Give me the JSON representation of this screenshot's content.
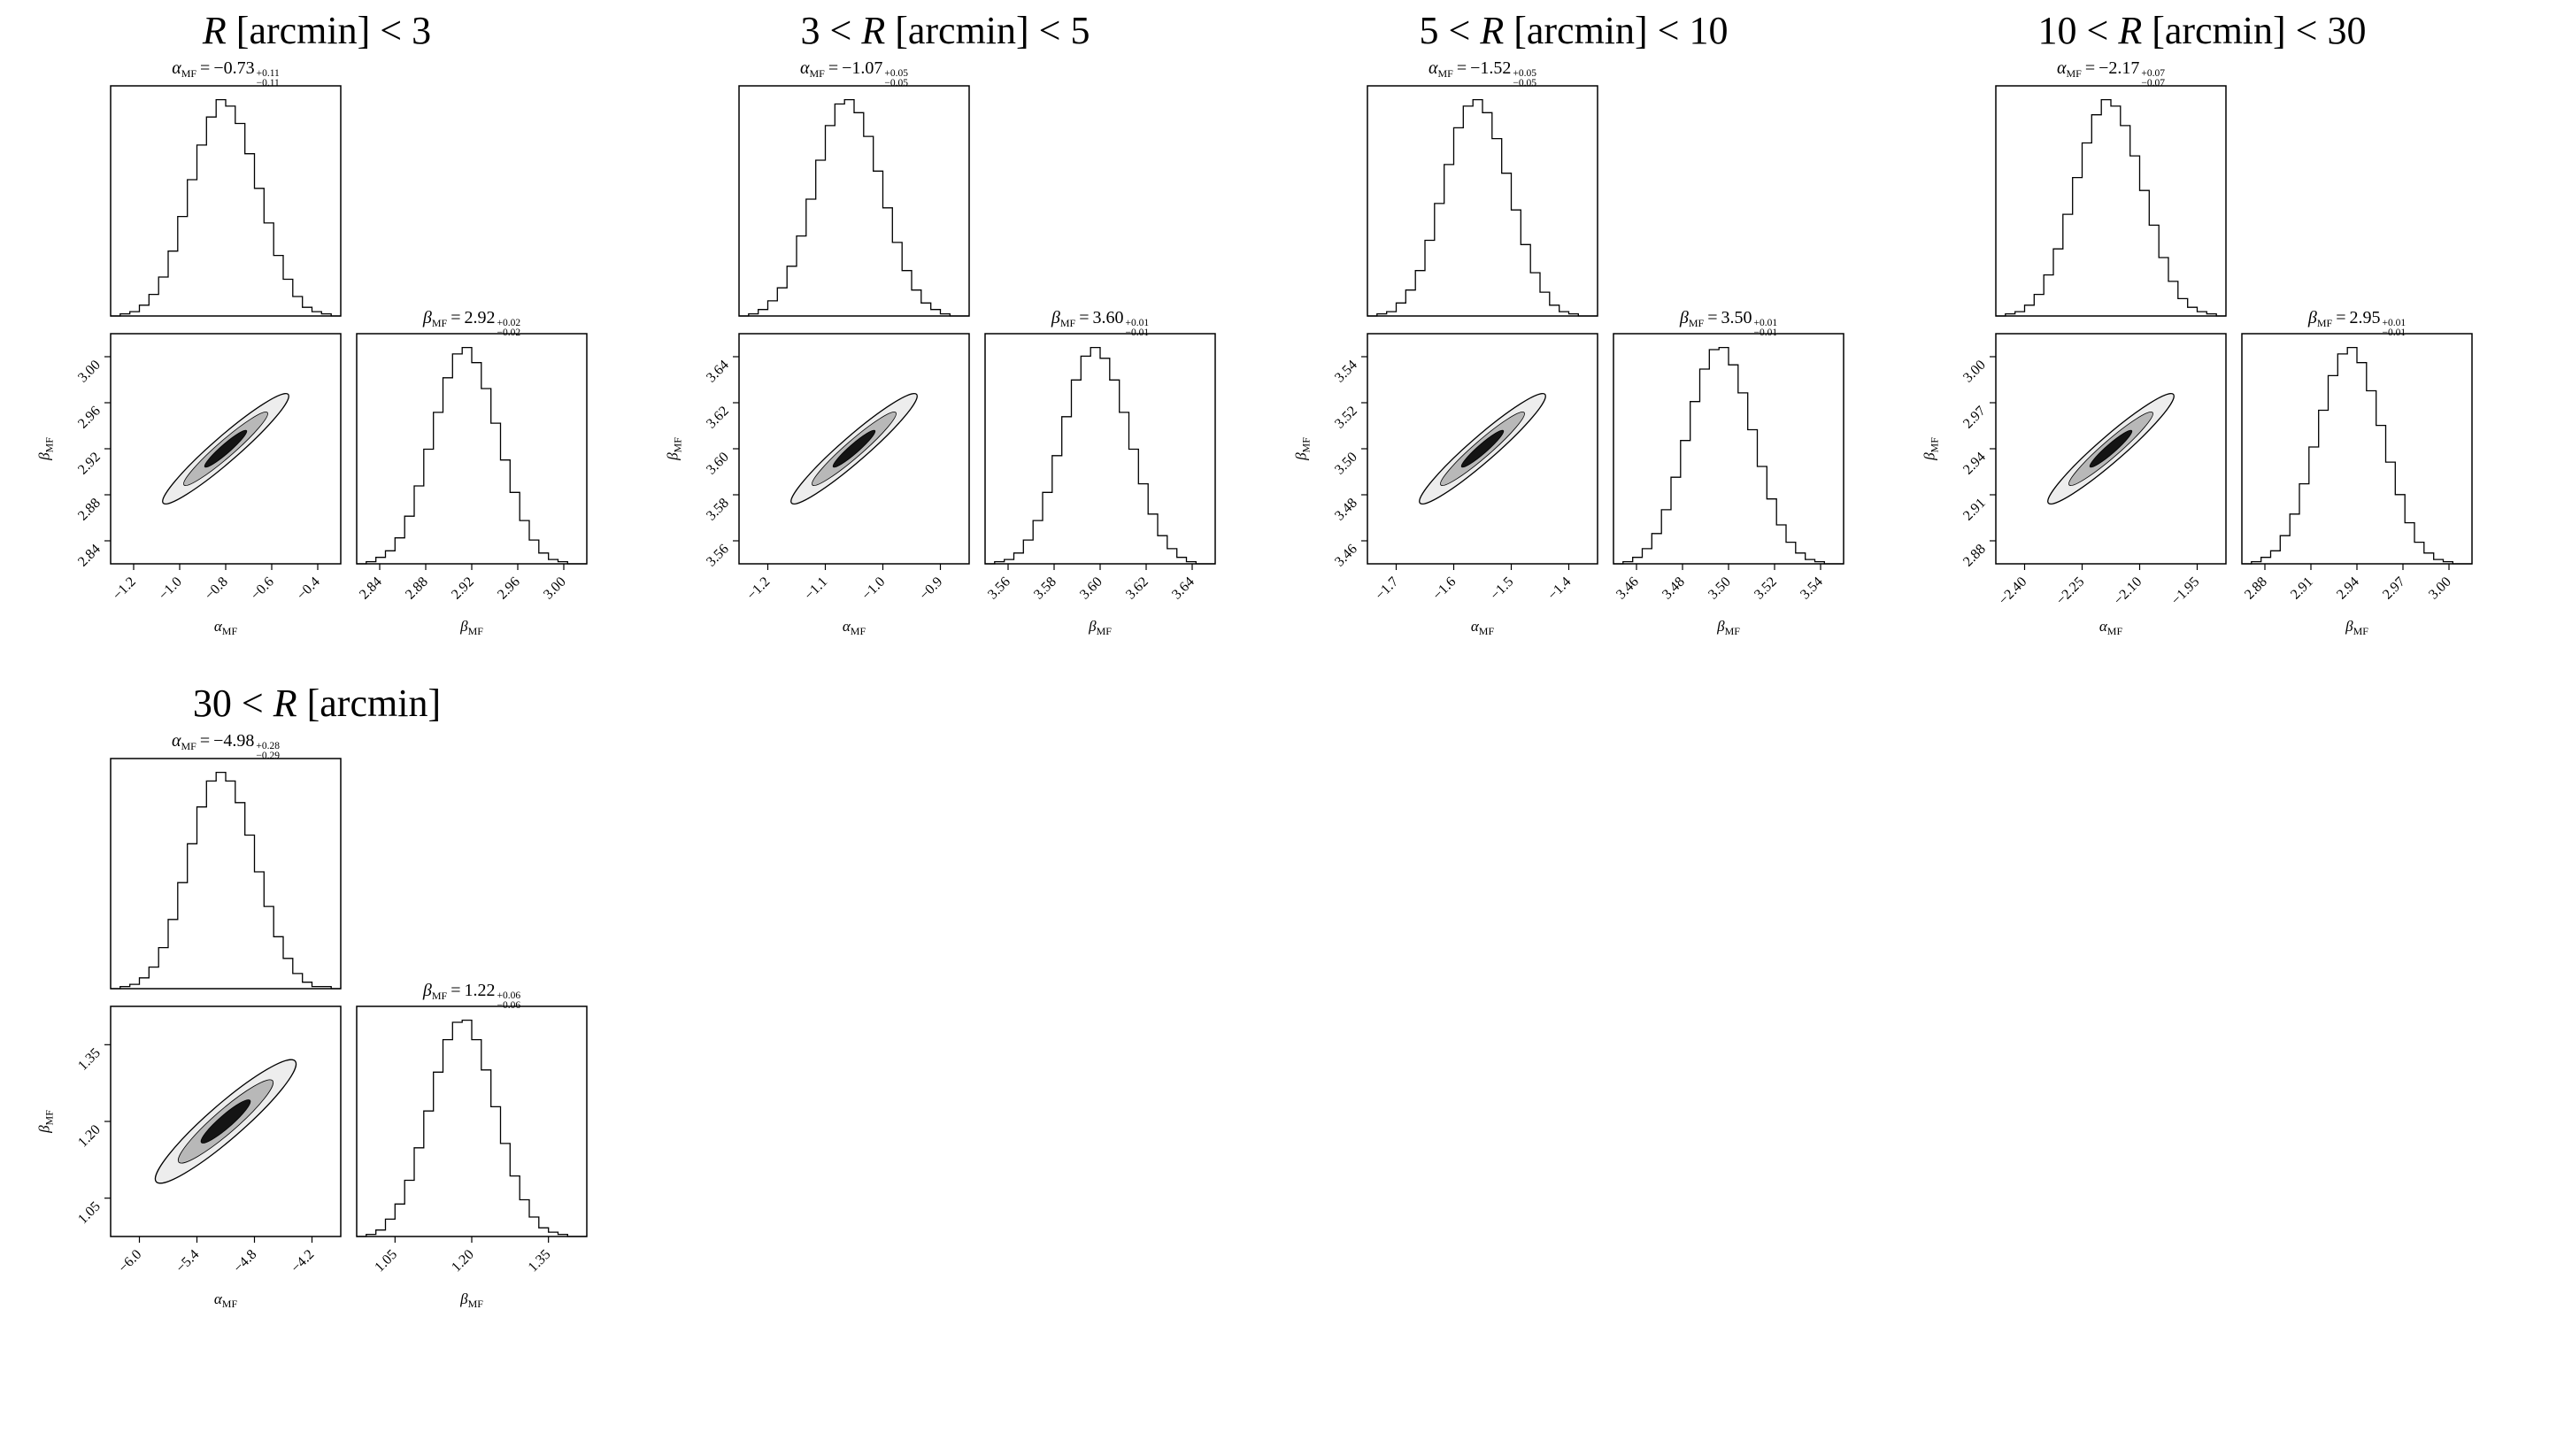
{
  "labels": {
    "r_symbol": "R",
    "alpha_symbol": "α",
    "beta_symbol": "β",
    "mf_sub": "MF",
    "equals": "="
  },
  "colors": {
    "line": "#000000",
    "contour_light": "#ededed",
    "contour_mid": "#b8b8b8",
    "contour_dark": "#141414",
    "background": "#ffffff"
  },
  "chart_data": [
    {
      "type": "corner",
      "title": "R [arcmin] < 3",
      "title_prefix": "",
      "title_suffix": " [arcmin] < 3",
      "alpha": {
        "value": "−0.73",
        "plus": "+0.11",
        "minus": "−0.11"
      },
      "beta": {
        "value": "2.92",
        "plus": "+0.02",
        "minus": "−0.02"
      },
      "xlabel_left": "α_MF",
      "xlabel_right": "β_MF",
      "ylabel": "β_MF",
      "alpha_ticks": [
        "−1.2",
        "−1.0",
        "−0.8",
        "−0.6",
        "−0.4"
      ],
      "beta_ticks": [
        "2.84",
        "2.88",
        "2.92",
        "2.96",
        "3.00"
      ],
      "alpha_hist": [
        0,
        0.01,
        0.02,
        0.05,
        0.1,
        0.18,
        0.3,
        0.46,
        0.63,
        0.79,
        0.92,
        1,
        0.97,
        0.89,
        0.75,
        0.59,
        0.43,
        0.28,
        0.17,
        0.09,
        0.04,
        0.02,
        0.01,
        0
      ],
      "beta_hist": [
        0,
        0.01,
        0.03,
        0.06,
        0.12,
        0.22,
        0.36,
        0.53,
        0.7,
        0.86,
        0.97,
        1,
        0.93,
        0.81,
        0.65,
        0.48,
        0.33,
        0.2,
        0.11,
        0.05,
        0.02,
        0.01,
        0,
        0
      ],
      "contour": {
        "angle": -41,
        "levels": [
          [
            0.36,
            0.055
          ],
          [
            0.24,
            0.036
          ],
          [
            0.12,
            0.02
          ]
        ]
      }
    },
    {
      "type": "corner",
      "title": "3 < R [arcmin] < 5",
      "title_prefix": "3 < ",
      "title_suffix": " [arcmin] < 5",
      "alpha": {
        "value": "−1.07",
        "plus": "+0.05",
        "minus": "−0.05"
      },
      "beta": {
        "value": "3.60",
        "plus": "+0.01",
        "minus": "−0.01"
      },
      "xlabel_left": "α_MF",
      "xlabel_right": "β_MF",
      "ylabel": "β_MF",
      "alpha_ticks": [
        "−1.2",
        "−1.1",
        "−1.0",
        "−0.9"
      ],
      "beta_ticks": [
        "3.56",
        "3.58",
        "3.60",
        "3.62",
        "3.64"
      ],
      "alpha_hist": [
        0,
        0.01,
        0.03,
        0.07,
        0.13,
        0.23,
        0.37,
        0.54,
        0.72,
        0.88,
        0.98,
        1,
        0.94,
        0.83,
        0.67,
        0.5,
        0.34,
        0.21,
        0.12,
        0.06,
        0.03,
        0.01,
        0,
        0
      ],
      "beta_hist": [
        0,
        0.01,
        0.02,
        0.05,
        0.11,
        0.2,
        0.33,
        0.5,
        0.68,
        0.85,
        0.96,
        1,
        0.95,
        0.85,
        0.7,
        0.53,
        0.37,
        0.23,
        0.13,
        0.07,
        0.03,
        0.01,
        0,
        0
      ],
      "contour": {
        "angle": -41,
        "levels": [
          [
            0.36,
            0.055
          ],
          [
            0.24,
            0.036
          ],
          [
            0.12,
            0.02
          ]
        ]
      }
    },
    {
      "type": "corner",
      "title": "5 < R [arcmin] < 10",
      "title_prefix": "5 < ",
      "title_suffix": " [arcmin] < 10",
      "alpha": {
        "value": "−1.52",
        "plus": "+0.05",
        "minus": "−0.05"
      },
      "beta": {
        "value": "3.50",
        "plus": "+0.01",
        "minus": "−0.01"
      },
      "xlabel_left": "α_MF",
      "xlabel_right": "β_MF",
      "ylabel": "β_MF",
      "alpha_ticks": [
        "−1.7",
        "−1.6",
        "−1.5",
        "−1.4"
      ],
      "beta_ticks": [
        "3.46",
        "3.48",
        "3.50",
        "3.52",
        "3.54"
      ],
      "alpha_hist": [
        0,
        0.01,
        0.02,
        0.06,
        0.12,
        0.21,
        0.35,
        0.52,
        0.7,
        0.87,
        0.97,
        1,
        0.94,
        0.82,
        0.66,
        0.49,
        0.33,
        0.2,
        0.11,
        0.05,
        0.02,
        0.01,
        0,
        0
      ],
      "beta_hist": [
        0,
        0.01,
        0.03,
        0.07,
        0.14,
        0.25,
        0.4,
        0.57,
        0.75,
        0.9,
        0.99,
        1,
        0.92,
        0.79,
        0.62,
        0.45,
        0.3,
        0.18,
        0.1,
        0.05,
        0.02,
        0.01,
        0,
        0
      ],
      "contour": {
        "angle": -41,
        "levels": [
          [
            0.36,
            0.055
          ],
          [
            0.24,
            0.036
          ],
          [
            0.12,
            0.02
          ]
        ]
      }
    },
    {
      "type": "corner",
      "title": "10 < R [arcmin] < 30",
      "title_prefix": "10 < ",
      "title_suffix": " [arcmin] < 30",
      "alpha": {
        "value": "−2.17",
        "plus": "+0.07",
        "minus": "−0.07"
      },
      "beta": {
        "value": "2.95",
        "plus": "+0.01",
        "minus": "−0.01"
      },
      "xlabel_left": "α_MF",
      "xlabel_right": "β_MF",
      "ylabel": "β_MF",
      "alpha_ticks": [
        "−2.40",
        "−2.25",
        "−2.10",
        "−1.95"
      ],
      "beta_ticks": [
        "2.88",
        "2.91",
        "2.94",
        "2.97",
        "3.00"
      ],
      "alpha_hist": [
        0,
        0.01,
        0.02,
        0.05,
        0.1,
        0.19,
        0.31,
        0.47,
        0.64,
        0.8,
        0.93,
        1,
        0.97,
        0.88,
        0.74,
        0.58,
        0.42,
        0.27,
        0.16,
        0.08,
        0.04,
        0.02,
        0.01,
        0
      ],
      "beta_hist": [
        0,
        0.01,
        0.03,
        0.06,
        0.13,
        0.23,
        0.37,
        0.54,
        0.71,
        0.87,
        0.97,
        1,
        0.93,
        0.8,
        0.64,
        0.47,
        0.32,
        0.19,
        0.1,
        0.05,
        0.02,
        0.01,
        0,
        0
      ],
      "contour": {
        "angle": -41,
        "levels": [
          [
            0.36,
            0.055
          ],
          [
            0.24,
            0.036
          ],
          [
            0.12,
            0.02
          ]
        ]
      }
    },
    {
      "type": "corner",
      "title": "30 < R [arcmin]",
      "title_prefix": "30 < ",
      "title_suffix": " [arcmin]",
      "alpha": {
        "value": "−4.98",
        "plus": "+0.28",
        "minus": "−0.29"
      },
      "beta": {
        "value": "1.22",
        "plus": "+0.06",
        "minus": "−0.06"
      },
      "xlabel_left": "α_MF",
      "xlabel_right": "β_MF",
      "ylabel": "β_MF",
      "alpha_ticks": [
        "−6.0",
        "−5.4",
        "−4.8",
        "−4.2"
      ],
      "beta_ticks": [
        "1.05",
        "1.20",
        "1.35"
      ],
      "alpha_hist": [
        0,
        0.01,
        0.02,
        0.05,
        0.1,
        0.19,
        0.32,
        0.49,
        0.67,
        0.84,
        0.96,
        1,
        0.96,
        0.86,
        0.71,
        0.54,
        0.38,
        0.24,
        0.14,
        0.07,
        0.03,
        0.01,
        0.01,
        0
      ],
      "beta_hist": [
        0,
        0.01,
        0.03,
        0.08,
        0.15,
        0.26,
        0.41,
        0.58,
        0.76,
        0.91,
        0.99,
        1,
        0.91,
        0.77,
        0.6,
        0.43,
        0.28,
        0.17,
        0.09,
        0.04,
        0.02,
        0.01,
        0,
        0
      ],
      "contour": {
        "angle": -41,
        "levels": [
          [
            0.4,
            0.075
          ],
          [
            0.27,
            0.05
          ],
          [
            0.14,
            0.028
          ]
        ]
      }
    }
  ]
}
